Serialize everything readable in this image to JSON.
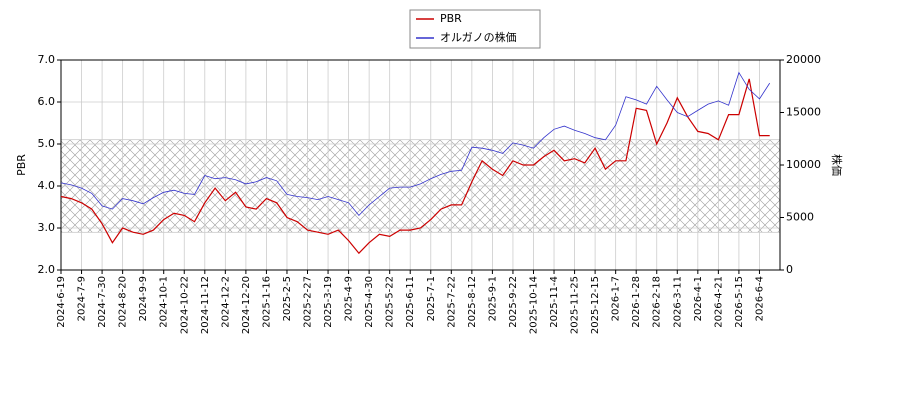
{
  "chart_data": {
    "type": "line",
    "x": [
      "2024-6-19",
      null,
      "2024-7-9",
      null,
      "2024-7-30",
      null,
      "2024-8-20",
      null,
      "2024-9-9",
      null,
      "2024-10-1",
      null,
      "2024-10-22",
      null,
      "2024-11-12",
      null,
      "2024-12-2",
      null,
      "2024-12-20",
      null,
      "2025-1-16",
      null,
      "2025-2-5",
      null,
      "2025-2-27",
      null,
      "2025-3-19",
      null,
      "2025-4-9",
      null,
      "2025-4-30",
      null,
      "2025-5-22",
      null,
      "2025-6-11",
      null,
      "2025-7-1",
      null,
      "2025-7-22",
      null,
      "2025-8-12",
      null,
      "2025-9-1",
      null,
      "2025-9-22",
      null,
      "2025-10-14",
      null,
      "2025-11-4",
      null,
      "2025-11-25",
      null,
      "2025-12-15",
      null,
      "2026-1-7",
      null,
      "2026-1-28",
      null,
      "2026-2-18",
      null,
      "2026-3-11",
      null,
      "2026-4-1",
      null,
      "2026-4-21",
      null,
      "2026-5-15",
      null,
      "2026-6-4",
      null
    ],
    "series": [
      {
        "name": "PBR",
        "color": "#cc0000",
        "axis": "y",
        "values": [
          3.75,
          3.7,
          3.6,
          3.45,
          3.1,
          2.65,
          3.0,
          2.9,
          2.85,
          2.95,
          3.2,
          3.35,
          3.3,
          3.15,
          3.6,
          3.95,
          3.65,
          3.85,
          3.5,
          3.45,
          3.7,
          3.6,
          3.25,
          3.15,
          2.95,
          2.9,
          2.85,
          2.95,
          2.7,
          2.4,
          2.65,
          2.85,
          2.8,
          2.95,
          2.95,
          3.0,
          3.2,
          3.45,
          3.55,
          3.55,
          4.1,
          4.6,
          4.4,
          4.25,
          4.6,
          4.5,
          4.5,
          4.7,
          4.85,
          4.6,
          4.65,
          4.55,
          4.9,
          4.4,
          4.6,
          4.6,
          5.85,
          5.8,
          5.0,
          5.5,
          6.1,
          5.65,
          5.3,
          5.25,
          5.1,
          5.7,
          5.7,
          6.55,
          5.2,
          5.2
        ]
      },
      {
        "name": "オルガノの株価",
        "color": "#3333cc",
        "axis": "y2",
        "values": [
          8300,
          8100,
          7800,
          7300,
          6100,
          5800,
          6800,
          6600,
          6300,
          6900,
          7400,
          7600,
          7300,
          7200,
          9000,
          8700,
          8800,
          8600,
          8200,
          8400,
          8800,
          8500,
          7200,
          7000,
          6900,
          6700,
          7000,
          6700,
          6400,
          5200,
          6200,
          7000,
          7800,
          7900,
          7900,
          8200,
          8700,
          9100,
          9400,
          9500,
          11700,
          11600,
          11400,
          11100,
          12100,
          11900,
          11600,
          12600,
          13400,
          13700,
          13300,
          13000,
          12600,
          12400,
          13800,
          16500,
          16200,
          15800,
          17500,
          16200,
          15000,
          14600,
          15200,
          15800,
          16100,
          15700,
          18800,
          17200,
          16300,
          17800
        ]
      }
    ],
    "ylabel": "PBR",
    "y2label": "株価",
    "ylim": [
      2,
      7
    ],
    "yticks": [
      {
        "value": 2,
        "label": "2.0"
      },
      {
        "value": 3,
        "label": "3.0"
      },
      {
        "value": 4,
        "label": "4.0"
      },
      {
        "value": 5,
        "label": "5.0"
      },
      {
        "value": 6,
        "label": "6.0"
      },
      {
        "value": 7,
        "label": "7.0"
      }
    ],
    "y2lim": [
      0,
      20000
    ],
    "y2ticks": [
      0,
      5000,
      10000,
      15000,
      20000
    ],
    "band": [
      2.9,
      5.1
    ],
    "grid": true,
    "legend": "top"
  }
}
